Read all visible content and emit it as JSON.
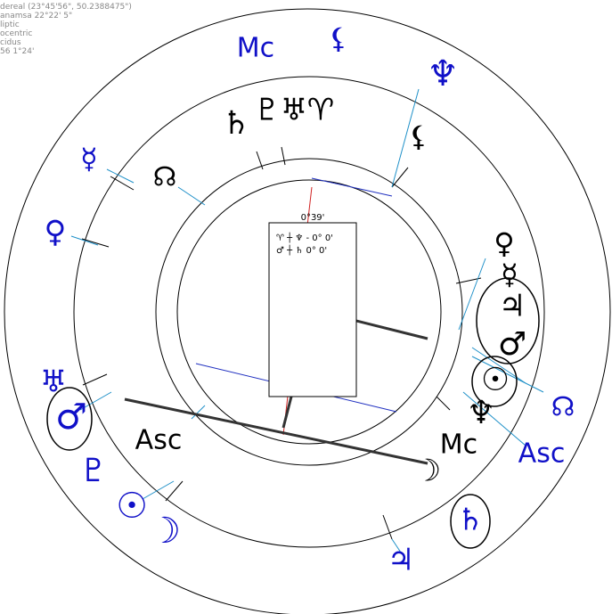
{
  "header": {
    "lines": [
      "dereal (23°45'56\", 50.2388475\")",
      "anamsa 22°22' 5\"",
      "liptic",
      "ocentric",
      "cidus",
      "56   1°24'"
    ]
  },
  "box": {
    "title": "0°39'",
    "rows": [
      "♈ ┼ ♆ - 0° 0'",
      "♂ ┼ ♄    0° 0'"
    ]
  },
  "outer_glyphs": [
    "Mc",
    "⚸",
    "♆",
    "☿",
    "♀",
    "♅",
    "♂",
    "♇",
    "☉",
    "☽",
    "♃",
    "♄",
    "Asc",
    "☊"
  ],
  "inner_glyphs": [
    "♄",
    "♇",
    "♅",
    "♈",
    "⚸",
    "☊",
    "Asc",
    "Mc",
    "☽",
    "♆",
    "☉",
    "♂",
    "♃",
    "☿",
    "♀"
  ]
}
